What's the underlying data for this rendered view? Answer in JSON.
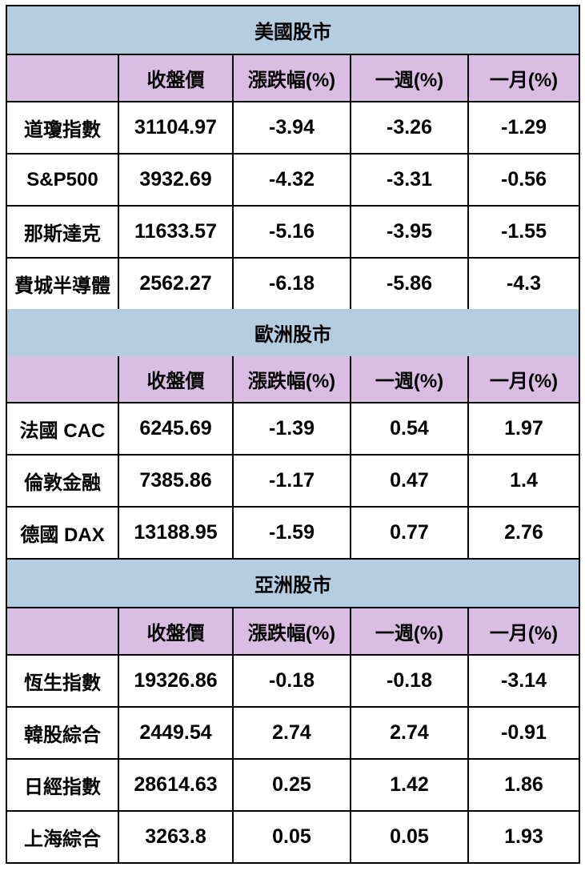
{
  "chart_data": {
    "type": "table",
    "columns": [
      "",
      "收盤價",
      "漲跌幅(%)",
      "一週(%)",
      "一月(%)"
    ],
    "sections": [
      {
        "title": "美國股市",
        "rows": [
          {
            "name": "道瓊指數",
            "values": [
              "31104.97",
              "-3.94",
              "-3.26",
              "-1.29"
            ]
          },
          {
            "name": "S&P500",
            "values": [
              "3932.69",
              "-4.32",
              "-3.31",
              "-0.56"
            ]
          },
          {
            "name": "那斯達克",
            "values": [
              "11633.57",
              "-5.16",
              "-3.95",
              "-1.55"
            ]
          },
          {
            "name": "費城半導體",
            "values": [
              "2562.27",
              "-6.18",
              "-5.86",
              "-4.3"
            ]
          }
        ]
      },
      {
        "title": "歐洲股市",
        "rows": [
          {
            "name": "法國 CAC",
            "values": [
              "6245.69",
              "-1.39",
              "0.54",
              "1.97"
            ]
          },
          {
            "name": "倫敦金融",
            "values": [
              "7385.86",
              "-1.17",
              "0.47",
              "1.4"
            ]
          },
          {
            "name": "德國 DAX",
            "values": [
              "13188.95",
              "-1.59",
              "0.77",
              "2.76"
            ]
          }
        ]
      },
      {
        "title": "亞洲股市",
        "rows": [
          {
            "name": "恆生指數",
            "values": [
              "19326.86",
              "-0.18",
              "-0.18",
              "-3.14"
            ]
          },
          {
            "name": "韓股綜合",
            "values": [
              "2449.54",
              "2.74",
              "2.74",
              "-0.91"
            ]
          },
          {
            "name": "日經指數",
            "values": [
              "28614.63",
              "0.25",
              "1.42",
              "1.86"
            ]
          },
          {
            "name": "上海綜合",
            "values": [
              "3263.8",
              "0.05",
              "0.05",
              "1.93"
            ]
          }
        ]
      }
    ],
    "colors": {
      "section_header_bg": "#b5cde1",
      "column_header_bg": "#dabde2",
      "cell_bg": "#ffffff",
      "border": "#000000",
      "text": "#000000"
    }
  }
}
